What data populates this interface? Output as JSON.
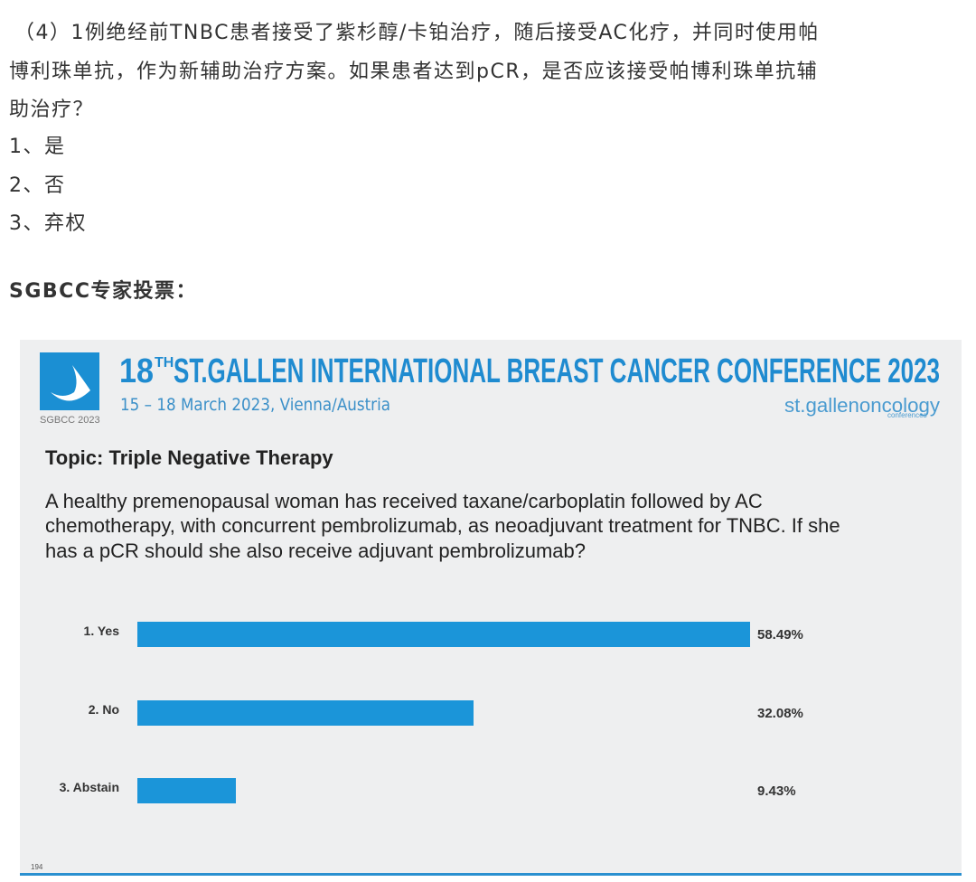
{
  "question": {
    "lines": [
      "（4）1例绝经前TNBC患者接受了紫杉醇/卡铂治疗，随后接受AC化疗，并同时使用帕",
      "博利珠单抗，作为新辅助治疗方案。如果患者达到pCR，是否应该接受帕博利珠单抗辅",
      "助治疗？"
    ],
    "options": [
      "1、是",
      "2、否",
      "3、弃权"
    ]
  },
  "vote_heading": "SGBCC专家投票：",
  "slide": {
    "logo_label": "SGBCC 2023",
    "title_number": "18",
    "title_superscript": "TH",
    "title_text": "ST.GALLEN INTERNATIONAL BREAST CANCER CONFERENCE 2023",
    "date": "15 – 18 March 2023, Vienna/Austria",
    "brand": "st.gallenoncology",
    "brand_sub": "conferences",
    "topic": "Topic: Triple Negative Therapy",
    "question_lines": [
      "A healthy premenopausal woman has received taxane/carboplatin followed by AC",
      "chemotherapy, with concurrent pembrolizumab, as neoadjuvant treatment for TNBC. If she",
      "has a pCR should she also receive adjuvant pembrolizumab?"
    ],
    "page_number": "194"
  },
  "chart_data": {
    "type": "bar",
    "orientation": "horizontal",
    "categories": [
      "1. Yes",
      "2. No",
      "3. Abstain"
    ],
    "values": [
      58.49,
      32.08,
      9.43
    ],
    "value_labels": [
      "58.49%",
      "32.08%",
      "9.43%"
    ],
    "color": "#1b95d9"
  }
}
